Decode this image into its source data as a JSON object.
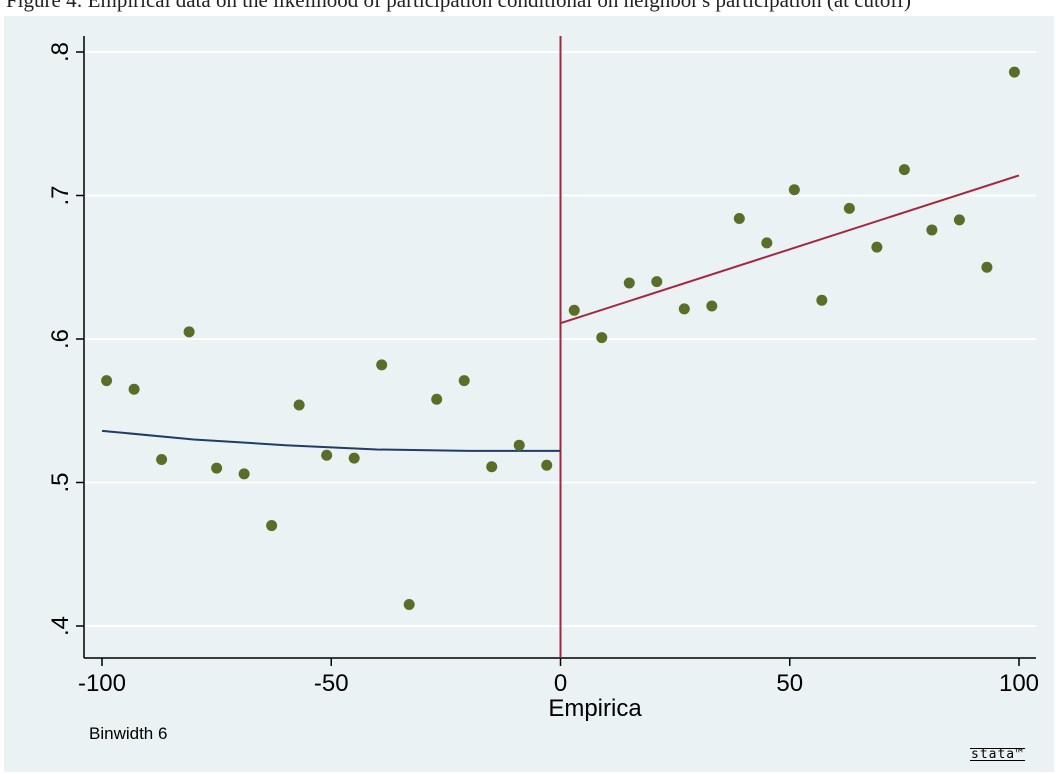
{
  "caption": "Figure 4: Empirical data on the likelihood of participation conditional on neighbor's participation (at cutoff)",
  "chart_data": {
    "type": "scatter",
    "xlabel": "Empirica",
    "ylabel": "",
    "note": "Binwidth 6",
    "logo": "stata™",
    "xlim": [
      -100,
      100
    ],
    "ylim": [
      0.4,
      0.8
    ],
    "x_ticks": [
      -100,
      -50,
      0,
      50,
      100
    ],
    "x_tick_labels": [
      "-100",
      "-50",
      "0",
      "50",
      "100"
    ],
    "y_ticks": [
      0.4,
      0.5,
      0.6,
      0.7,
      0.8
    ],
    "y_tick_labels": [
      ".4",
      ".5",
      ".6",
      ".7",
      ".8"
    ],
    "grid": true,
    "cutoff": 0,
    "points": [
      {
        "x": -99,
        "y": 0.571
      },
      {
        "x": -93,
        "y": 0.565
      },
      {
        "x": -87,
        "y": 0.516
      },
      {
        "x": -81,
        "y": 0.605
      },
      {
        "x": -75,
        "y": 0.51
      },
      {
        "x": -69,
        "y": 0.506
      },
      {
        "x": -63,
        "y": 0.47
      },
      {
        "x": -57,
        "y": 0.554
      },
      {
        "x": -51,
        "y": 0.519
      },
      {
        "x": -45,
        "y": 0.517
      },
      {
        "x": -39,
        "y": 0.582
      },
      {
        "x": -33,
        "y": 0.415
      },
      {
        "x": -27,
        "y": 0.558
      },
      {
        "x": -21,
        "y": 0.571
      },
      {
        "x": -15,
        "y": 0.511
      },
      {
        "x": -9,
        "y": 0.526
      },
      {
        "x": -3,
        "y": 0.512
      },
      {
        "x": 3,
        "y": 0.62
      },
      {
        "x": 9,
        "y": 0.601
      },
      {
        "x": 15,
        "y": 0.639
      },
      {
        "x": 21,
        "y": 0.64
      },
      {
        "x": 27,
        "y": 0.621
      },
      {
        "x": 33,
        "y": 0.623
      },
      {
        "x": 39,
        "y": 0.684
      },
      {
        "x": 45,
        "y": 0.667
      },
      {
        "x": 51,
        "y": 0.704
      },
      {
        "x": 57,
        "y": 0.627
      },
      {
        "x": 63,
        "y": 0.691
      },
      {
        "x": 69,
        "y": 0.664
      },
      {
        "x": 75,
        "y": 0.718
      },
      {
        "x": 81,
        "y": 0.676
      },
      {
        "x": 87,
        "y": 0.683
      },
      {
        "x": 93,
        "y": 0.65
      },
      {
        "x": 99,
        "y": 0.786
      }
    ],
    "fit_left": {
      "x": [
        -100,
        -80,
        -60,
        -40,
        -20,
        0
      ],
      "y": [
        0.536,
        0.53,
        0.526,
        0.523,
        0.522,
        0.522
      ]
    },
    "fit_right": {
      "x": [
        0,
        100
      ],
      "y": [
        0.611,
        0.714
      ]
    },
    "colors": {
      "background": "#eaf2f3",
      "points": "#5a6e2a",
      "fit_left": "#1f3d66",
      "fit_right": "#a3283e",
      "cutoff_line": "#a3283e",
      "grid": "#ffffff"
    }
  }
}
